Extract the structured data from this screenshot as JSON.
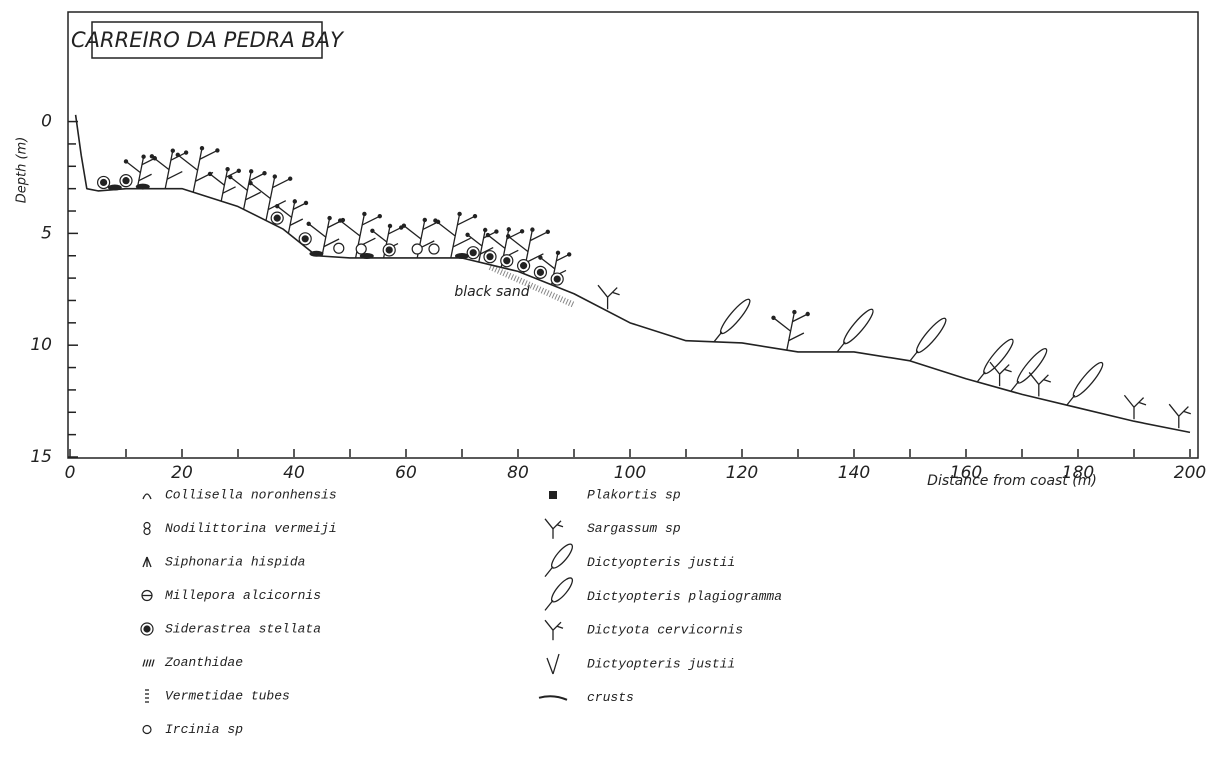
{
  "chart_data": {
    "type": "line",
    "title": "CARREIRO DA PEDRA BAY",
    "x_label": "Distance from coast (m)",
    "y_label": "Depth (m)",
    "annotation": "black sand",
    "x": [
      1,
      2,
      3,
      5,
      10,
      20,
      30,
      38,
      44,
      50,
      70,
      80,
      90,
      100,
      110,
      120,
      130,
      140,
      150,
      160,
      170,
      180,
      190,
      200
    ],
    "series": [
      {
        "color": "#222222",
        "values": [
          -0.3,
          1.5,
          3,
          3.1,
          3.0,
          3.0,
          3.8,
          4.8,
          6.0,
          6.1,
          6.1,
          6.7,
          7.7,
          9.0,
          9.8,
          9.9,
          10.3,
          10.3,
          10.7,
          11.5,
          12.2,
          12.8,
          13.4,
          13.9
        ]
      }
    ],
    "xlim": [
      0,
      200
    ],
    "xticks": [
      0,
      20,
      40,
      60,
      80,
      100,
      120,
      140,
      160,
      180,
      200
    ],
    "xminorticks": [
      10,
      30,
      50,
      70,
      90,
      110,
      130,
      150,
      170,
      190
    ],
    "ylim": [
      -4.9,
      15
    ],
    "yticks": [
      0,
      5,
      10,
      15
    ],
    "yminorticks": [
      1,
      2,
      3,
      4,
      6,
      7,
      8,
      9,
      11,
      12,
      13,
      14
    ],
    "y_inverted": true,
    "legend_left": [
      "Collisella noronhensis",
      "Nodilittorina vermeiji",
      "Siphonaria hispida",
      "Millepora alcicornis",
      "Siderastrea stellata",
      "Zoanthidae",
      "Vermetidae tubes",
      "Ircinia sp"
    ],
    "legend_right": [
      "Plakortis sp",
      "Sargassum sp",
      "Dictyopteris justii",
      "Dictyopteris plagiogramma",
      "Dictyota cervicornis",
      "Dictyopteris justii",
      "crusts"
    ]
  }
}
